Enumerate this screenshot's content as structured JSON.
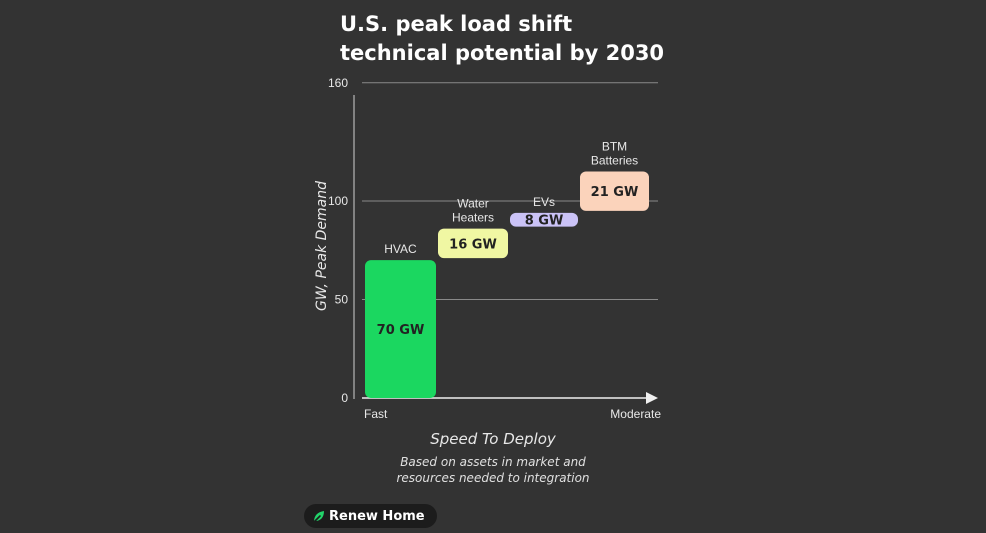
{
  "title_lines": [
    "U.S. peak load shift",
    "technical potential by 2030"
  ],
  "note_lines": [
    "Based on assets in market and",
    "resources needed to integration"
  ],
  "brand": {
    "name": "Renew Home",
    "icon": "leaf-icon"
  },
  "chart_data": {
    "type": "bar",
    "title": "U.S. peak load shift technical potential by 2030",
    "xlabel": "Speed To Deploy",
    "ylabel": "GW, Peak Demand",
    "ylim": [
      0,
      160
    ],
    "yticks": [
      0,
      50,
      100,
      160
    ],
    "x_start_label": "Fast",
    "x_end_label": "Moderate",
    "grid": true,
    "stacked": "waterfall",
    "categories": [
      "HVAC",
      "Water Heaters",
      "EVs",
      "BTM Batteries"
    ],
    "category_lines": [
      [
        "HVAC"
      ],
      [
        "Water",
        "Heaters"
      ],
      [
        "EVs"
      ],
      [
        "BTM",
        "Batteries"
      ]
    ],
    "values": [
      70,
      16,
      8,
      21
    ],
    "value_labels": [
      "70 GW",
      "16 GW",
      "8 GW",
      "21 GW"
    ],
    "colors": [
      "#1bd760",
      "#f0f7a3",
      "#cbc3f7",
      "#fbd3bb"
    ]
  }
}
